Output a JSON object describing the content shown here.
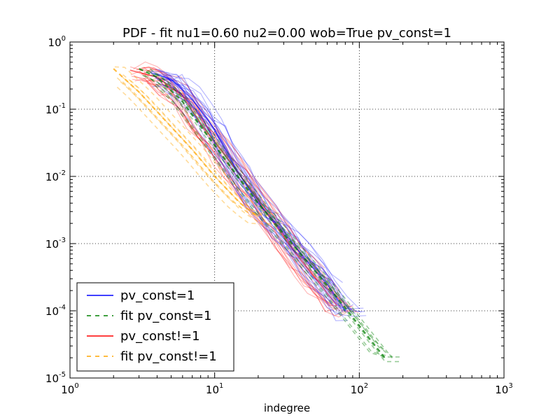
{
  "chart_data": {
    "type": "line",
    "title": "PDF - fit nu1=0.60 nu2=0.00 wob=True pv_const=1",
    "xlabel": "indegree",
    "ylabel": "",
    "xscale": "log",
    "yscale": "log",
    "xlim": [
      1,
      1000
    ],
    "ylim": [
      1e-05,
      1
    ],
    "grid": true,
    "legend_position": "lower-left",
    "x_tick_labels": [
      {
        "base": "10",
        "exp": "0"
      },
      {
        "base": "10",
        "exp": "1"
      },
      {
        "base": "10",
        "exp": "2"
      },
      {
        "base": "10",
        "exp": "3"
      }
    ],
    "y_tick_labels": [
      {
        "base": "10",
        "exp": "-5"
      },
      {
        "base": "10",
        "exp": "-4"
      },
      {
        "base": "10",
        "exp": "-3"
      },
      {
        "base": "10",
        "exp": "-2"
      },
      {
        "base": "10",
        "exp": "-1"
      },
      {
        "base": "10",
        "exp": "0"
      }
    ],
    "series": [
      {
        "name": "pv_const=1",
        "style": "solid",
        "color": "#0000ff",
        "x": [
          3.6,
          5,
          7,
          10,
          14,
          20,
          30,
          45,
          60,
          80
        ],
        "y": [
          0.35,
          0.28,
          0.14,
          0.05,
          0.013,
          0.004,
          0.0015,
          0.0005,
          0.00025,
          0.0001
        ]
      },
      {
        "name": "fit pv_const=1",
        "style": "dashed",
        "color": "#008000",
        "x": [
          3,
          4,
          6,
          9,
          14,
          20,
          30,
          45,
          70,
          100,
          150
        ],
        "y": [
          0.4,
          0.3,
          0.13,
          0.04,
          0.011,
          0.004,
          0.0014,
          0.0005,
          0.00016,
          6e-05,
          2e-05
        ]
      },
      {
        "name": "pv_const!=1",
        "style": "solid",
        "color": "#ff0000",
        "x": [
          2.6,
          4,
          6,
          8,
          12,
          18,
          25,
          35,
          50,
          70
        ],
        "y": [
          0.38,
          0.3,
          0.16,
          0.06,
          0.02,
          0.006,
          0.0022,
          0.0008,
          0.0003,
          0.00012
        ]
      },
      {
        "name": "fit pv_const!=1",
        "style": "dashed",
        "color": "#ffa500",
        "x": [
          2,
          3,
          4.5,
          7,
          10,
          15,
          20
        ],
        "y": [
          0.4,
          0.18,
          0.07,
          0.025,
          0.01,
          0.004,
          0.0025
        ]
      }
    ]
  }
}
